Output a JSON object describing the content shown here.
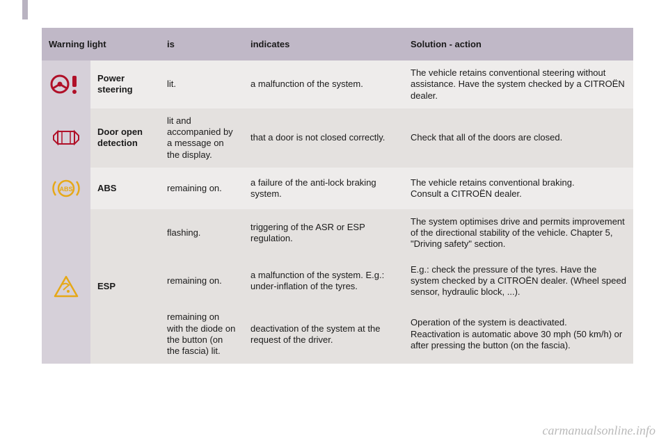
{
  "colors": {
    "header_bg": "#c0b8c7",
    "icon_col_bg": "#d6d0d9",
    "row_bg": "#eeeceb",
    "row_alt_bg": "#e4e1df",
    "text": "#1a1a1a",
    "icon_red": "#b01028",
    "icon_amber": "#e6a817",
    "watermark": "rgba(0,0,0,0.07)",
    "footer": "rgba(0,0,0,0.28)"
  },
  "typography": {
    "body_fontsize": 13,
    "watermark_fontsize": 56,
    "footer_fontsize": 18
  },
  "table": {
    "headers": [
      "Warning light",
      "is",
      "indicates",
      "Solution - action"
    ],
    "rows": [
      {
        "icon": "steering-wheel-warning",
        "name": "Power steering",
        "is": "lit.",
        "indicates": "a malfunction of the system.",
        "solution": "The vehicle retains conventional steering without assistance. Have the system checked by a CITROËN dealer.",
        "rowspan_icon": 1,
        "rowspan_name": 1,
        "alt": false
      },
      {
        "icon": "door-open",
        "name": "Door open detection",
        "is": "lit and accompanied by a message on the display.",
        "indicates": "that a door is not closed correctly.",
        "solution": "Check that all of the doors are closed.",
        "rowspan_icon": 1,
        "rowspan_name": 1,
        "alt": true
      },
      {
        "icon": "abs",
        "name": "ABS",
        "is": "remaining on.",
        "indicates": "a failure of the anti-lock braking system.",
        "solution": "The vehicle retains conventional braking.\nConsult a CITROËN dealer.",
        "rowspan_icon": 1,
        "rowspan_name": 1,
        "alt": false
      },
      {
        "icon": "esp",
        "name": "ESP",
        "is": "flashing.",
        "indicates": "triggering of the ASR or ESP regulation.",
        "solution": "The system optimises drive and permits improvement of the directional stability of the vehicle. Chapter 5, \"Driving safety\" section.",
        "rowspan_icon": 3,
        "rowspan_name": 3,
        "alt": true
      },
      {
        "icon": null,
        "name": null,
        "is": "remaining on.",
        "indicates": "a malfunction of the system. E.g.: under-inflation of the tyres.",
        "solution": "E.g.: check the pressure of the tyres. Have the system checked by a CITROËN dealer. (Wheel speed sensor, hydraulic block, ...).",
        "rowspan_icon": 0,
        "rowspan_name": 0,
        "alt": true
      },
      {
        "icon": null,
        "name": null,
        "is": "remaining on with the diode on the button (on the fascia) lit.",
        "indicates": "deactivation of the system at the request of the driver.",
        "solution": "Operation of the system is deactivated.\nReactivation is automatic above 30 mph (50 km/h) or after pressing the button (on the fascia).",
        "rowspan_icon": 0,
        "rowspan_name": 0,
        "alt": true
      }
    ]
  },
  "watermark": "carmanualsonline.info",
  "footer_url": "carmanualsonline.info"
}
